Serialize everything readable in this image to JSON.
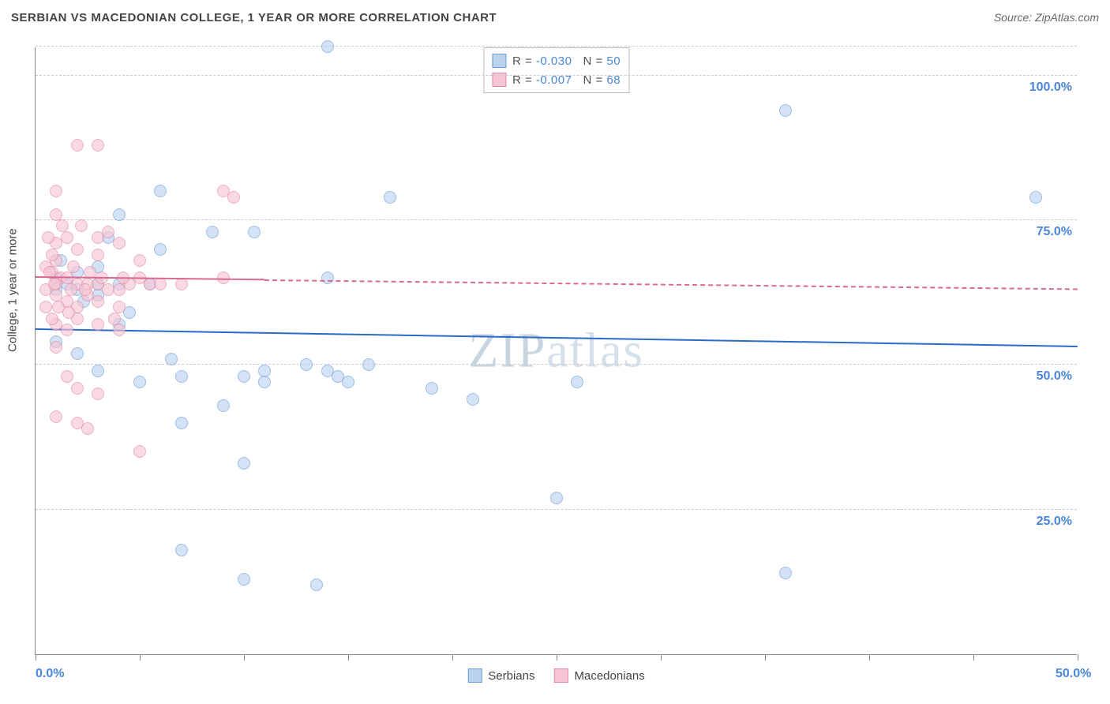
{
  "chart": {
    "type": "scatter",
    "title": "SERBIAN VS MACEDONIAN COLLEGE, 1 YEAR OR MORE CORRELATION CHART",
    "source": "Source: ZipAtlas.com",
    "watermark": "ZIPatlas",
    "y_axis_title": "College, 1 year or more",
    "xlim": [
      0,
      50
    ],
    "ylim": [
      0,
      105
    ],
    "x_ticks": [
      0,
      5,
      10,
      15,
      20,
      25,
      30,
      35,
      40,
      45,
      50
    ],
    "x_tick_labels": {
      "0": "0.0%",
      "50": "50.0%"
    },
    "y_gridlines": [
      25,
      50,
      75,
      100,
      105
    ],
    "y_tick_labels": {
      "25": "25.0%",
      "50": "50.0%",
      "75": "75.0%",
      "100": "100.0%"
    },
    "label_color": "#4a86d8",
    "background_color": "#ffffff",
    "grid_color": "#cccccc",
    "axis_color": "#888888",
    "title_fontsize": 15,
    "label_fontsize": 16,
    "marker_radius": 8,
    "series": [
      {
        "name": "Serbians",
        "fill_color": "#bcd3ef",
        "stroke_color": "#6d9bd6",
        "fill_alpha": 0.65,
        "R": "-0.030",
        "N": "50",
        "trend": {
          "x1": 0,
          "y1": 56,
          "x2": 50,
          "y2": 53,
          "solid_until_x": 50,
          "color": "#2a6ac8",
          "width": 2
        },
        "points": [
          [
            14,
            105
          ],
          [
            36,
            94
          ],
          [
            48,
            79
          ],
          [
            17,
            79
          ],
          [
            6,
            80
          ],
          [
            4,
            76
          ],
          [
            6,
            70
          ],
          [
            8.5,
            73
          ],
          [
            10.5,
            73
          ],
          [
            1,
            65
          ],
          [
            1.5,
            64
          ],
          [
            2,
            63
          ],
          [
            3,
            64
          ],
          [
            4,
            64
          ],
          [
            3,
            62
          ],
          [
            14,
            65
          ],
          [
            1,
            54
          ],
          [
            2,
            52
          ],
          [
            3,
            49
          ],
          [
            4,
            57
          ],
          [
            5,
            47
          ],
          [
            6.5,
            51
          ],
          [
            7,
            48
          ],
          [
            9,
            43
          ],
          [
            10,
            48
          ],
          [
            11,
            49
          ],
          [
            11,
            47
          ],
          [
            13,
            50
          ],
          [
            14,
            49
          ],
          [
            14.5,
            48
          ],
          [
            15,
            47
          ],
          [
            16,
            50
          ],
          [
            19,
            46
          ],
          [
            21,
            44
          ],
          [
            7,
            40
          ],
          [
            10,
            33
          ],
          [
            7,
            18
          ],
          [
            10,
            13
          ],
          [
            13.5,
            12
          ],
          [
            25,
            27
          ],
          [
            26,
            47
          ],
          [
            36,
            14
          ],
          [
            3.5,
            72
          ],
          [
            1.2,
            68
          ],
          [
            2.3,
            61
          ],
          [
            4.5,
            59
          ],
          [
            5.5,
            64
          ],
          [
            2,
            66
          ],
          [
            1,
            63
          ],
          [
            3,
            67
          ]
        ]
      },
      {
        "name": "Macedonians",
        "fill_color": "#f6c5d4",
        "stroke_color": "#e089a5",
        "fill_alpha": 0.65,
        "R": "-0.007",
        "N": "68",
        "trend": {
          "x1": 0,
          "y1": 65,
          "x2": 50,
          "y2": 63,
          "solid_until_x": 11,
          "color": "#d96a8e",
          "width": 2
        },
        "points": [
          [
            2,
            88
          ],
          [
            3,
            88
          ],
          [
            1,
            80
          ],
          [
            1,
            76
          ],
          [
            1.5,
            72
          ],
          [
            9,
            80
          ],
          [
            9.5,
            79
          ],
          [
            3,
            72
          ],
          [
            4,
            71
          ],
          [
            1,
            68
          ],
          [
            0.5,
            67
          ],
          [
            0.8,
            66
          ],
          [
            1.2,
            65
          ],
          [
            1.5,
            65
          ],
          [
            2,
            64
          ],
          [
            2.5,
            64
          ],
          [
            3,
            64
          ],
          [
            3.5,
            63
          ],
          [
            4,
            63
          ],
          [
            4.5,
            64
          ],
          [
            5,
            65
          ],
          [
            5.5,
            64
          ],
          [
            2,
            70
          ],
          [
            3,
            69
          ],
          [
            1,
            71
          ],
          [
            0.8,
            69
          ],
          [
            0.7,
            66
          ],
          [
            1,
            64
          ],
          [
            0.5,
            63
          ],
          [
            1,
            62
          ],
          [
            1.5,
            61
          ],
          [
            2,
            60
          ],
          [
            2.5,
            62
          ],
          [
            3,
            61
          ],
          [
            4,
            60
          ],
          [
            1,
            57
          ],
          [
            1.5,
            56
          ],
          [
            2,
            58
          ],
          [
            3,
            57
          ],
          [
            4,
            56
          ],
          [
            5,
            68
          ],
          [
            6,
            64
          ],
          [
            7,
            64
          ],
          [
            0.5,
            60
          ],
          [
            0.8,
            58
          ],
          [
            1,
            53
          ],
          [
            1.5,
            48
          ],
          [
            2,
            46
          ],
          [
            3,
            45
          ],
          [
            1,
            41
          ],
          [
            2,
            40
          ],
          [
            2.5,
            39
          ],
          [
            5,
            35
          ],
          [
            9,
            65
          ],
          [
            3.5,
            73
          ],
          [
            1.3,
            74
          ],
          [
            2.2,
            74
          ],
          [
            0.6,
            72
          ],
          [
            1.8,
            67
          ],
          [
            2.6,
            66
          ],
          [
            3.2,
            65
          ],
          [
            4.2,
            65
          ],
          [
            0.9,
            64
          ],
          [
            1.7,
            63
          ],
          [
            2.4,
            63
          ],
          [
            1.1,
            60
          ],
          [
            1.6,
            59
          ],
          [
            3.8,
            58
          ]
        ]
      }
    ],
    "legend_top": {
      "R_label": "R =",
      "N_label": "N ="
    },
    "legend_bottom": [
      {
        "label": "Serbians",
        "fill": "#bcd3ef",
        "stroke": "#6d9bd6"
      },
      {
        "label": "Macedonians",
        "fill": "#f6c5d4",
        "stroke": "#e089a5"
      }
    ]
  }
}
